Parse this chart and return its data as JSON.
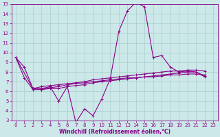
{
  "title": "",
  "xlabel": "Windchill (Refroidissement éolien,°C)",
  "bg_color": "#cce8e8",
  "line_color": "#880088",
  "grid_color": "#aacece",
  "xlim": [
    -0.5,
    23.5
  ],
  "ylim": [
    3,
    15
  ],
  "xticks": [
    0,
    1,
    2,
    3,
    4,
    5,
    6,
    7,
    8,
    9,
    10,
    11,
    12,
    13,
    14,
    15,
    16,
    17,
    18,
    19,
    20,
    21,
    22,
    23
  ],
  "yticks": [
    3,
    4,
    5,
    6,
    7,
    8,
    9,
    10,
    11,
    12,
    13,
    14,
    15
  ],
  "series_x": [
    [
      0,
      1,
      2,
      3,
      4,
      5,
      6,
      7,
      8,
      9,
      10,
      11,
      12,
      13,
      14,
      15,
      16,
      17,
      18,
      19,
      20,
      21,
      22
    ],
    [
      0,
      1,
      2,
      3,
      4,
      5,
      6,
      7,
      8,
      9,
      10,
      11,
      12,
      13,
      14,
      15,
      16,
      17,
      18,
      19,
      20,
      21,
      22
    ],
    [
      0,
      2,
      3,
      4,
      5,
      6,
      7,
      8,
      9,
      10,
      11,
      12,
      13,
      14,
      15,
      16,
      17,
      18,
      19,
      20,
      21,
      22
    ],
    [
      2,
      3,
      4,
      5,
      6,
      7,
      8,
      9,
      10,
      11,
      12,
      13,
      14,
      15,
      16,
      17,
      18,
      19,
      20,
      21,
      22
    ]
  ],
  "series_y": [
    [
      9.5,
      8.5,
      6.3,
      6.3,
      6.5,
      5.0,
      6.5,
      2.8,
      4.2,
      3.5,
      5.2,
      7.3,
      12.2,
      14.3,
      15.2,
      14.7,
      9.5,
      9.7,
      8.5,
      8.0,
      8.1,
      8.0,
      7.5
    ],
    [
      9.5,
      7.4,
      6.2,
      6.2,
      6.4,
      6.5,
      6.7,
      6.8,
      6.9,
      7.0,
      7.1,
      7.2,
      7.3,
      7.4,
      7.4,
      7.5,
      7.5,
      7.6,
      7.7,
      7.7,
      7.8,
      7.8,
      7.7
    ],
    [
      9.5,
      6.3,
      6.2,
      6.3,
      6.3,
      6.5,
      6.6,
      6.7,
      6.9,
      7.0,
      7.1,
      7.2,
      7.3,
      7.4,
      7.5,
      7.6,
      7.7,
      7.8,
      7.9,
      8.0,
      8.0,
      7.6
    ],
    [
      6.3,
      6.5,
      6.6,
      6.7,
      6.8,
      6.9,
      7.0,
      7.2,
      7.3,
      7.4,
      7.5,
      7.6,
      7.7,
      7.8,
      7.9,
      8.0,
      8.1,
      8.1,
      8.2,
      8.2,
      8.1
    ]
  ],
  "linewidth": 0.8,
  "marker": "+",
  "marker_size": 2.5,
  "marker_lw": 0.7,
  "tick_labelsize": 5,
  "xlabel_fontsize": 5.5,
  "xlabel_fontweight": "bold"
}
